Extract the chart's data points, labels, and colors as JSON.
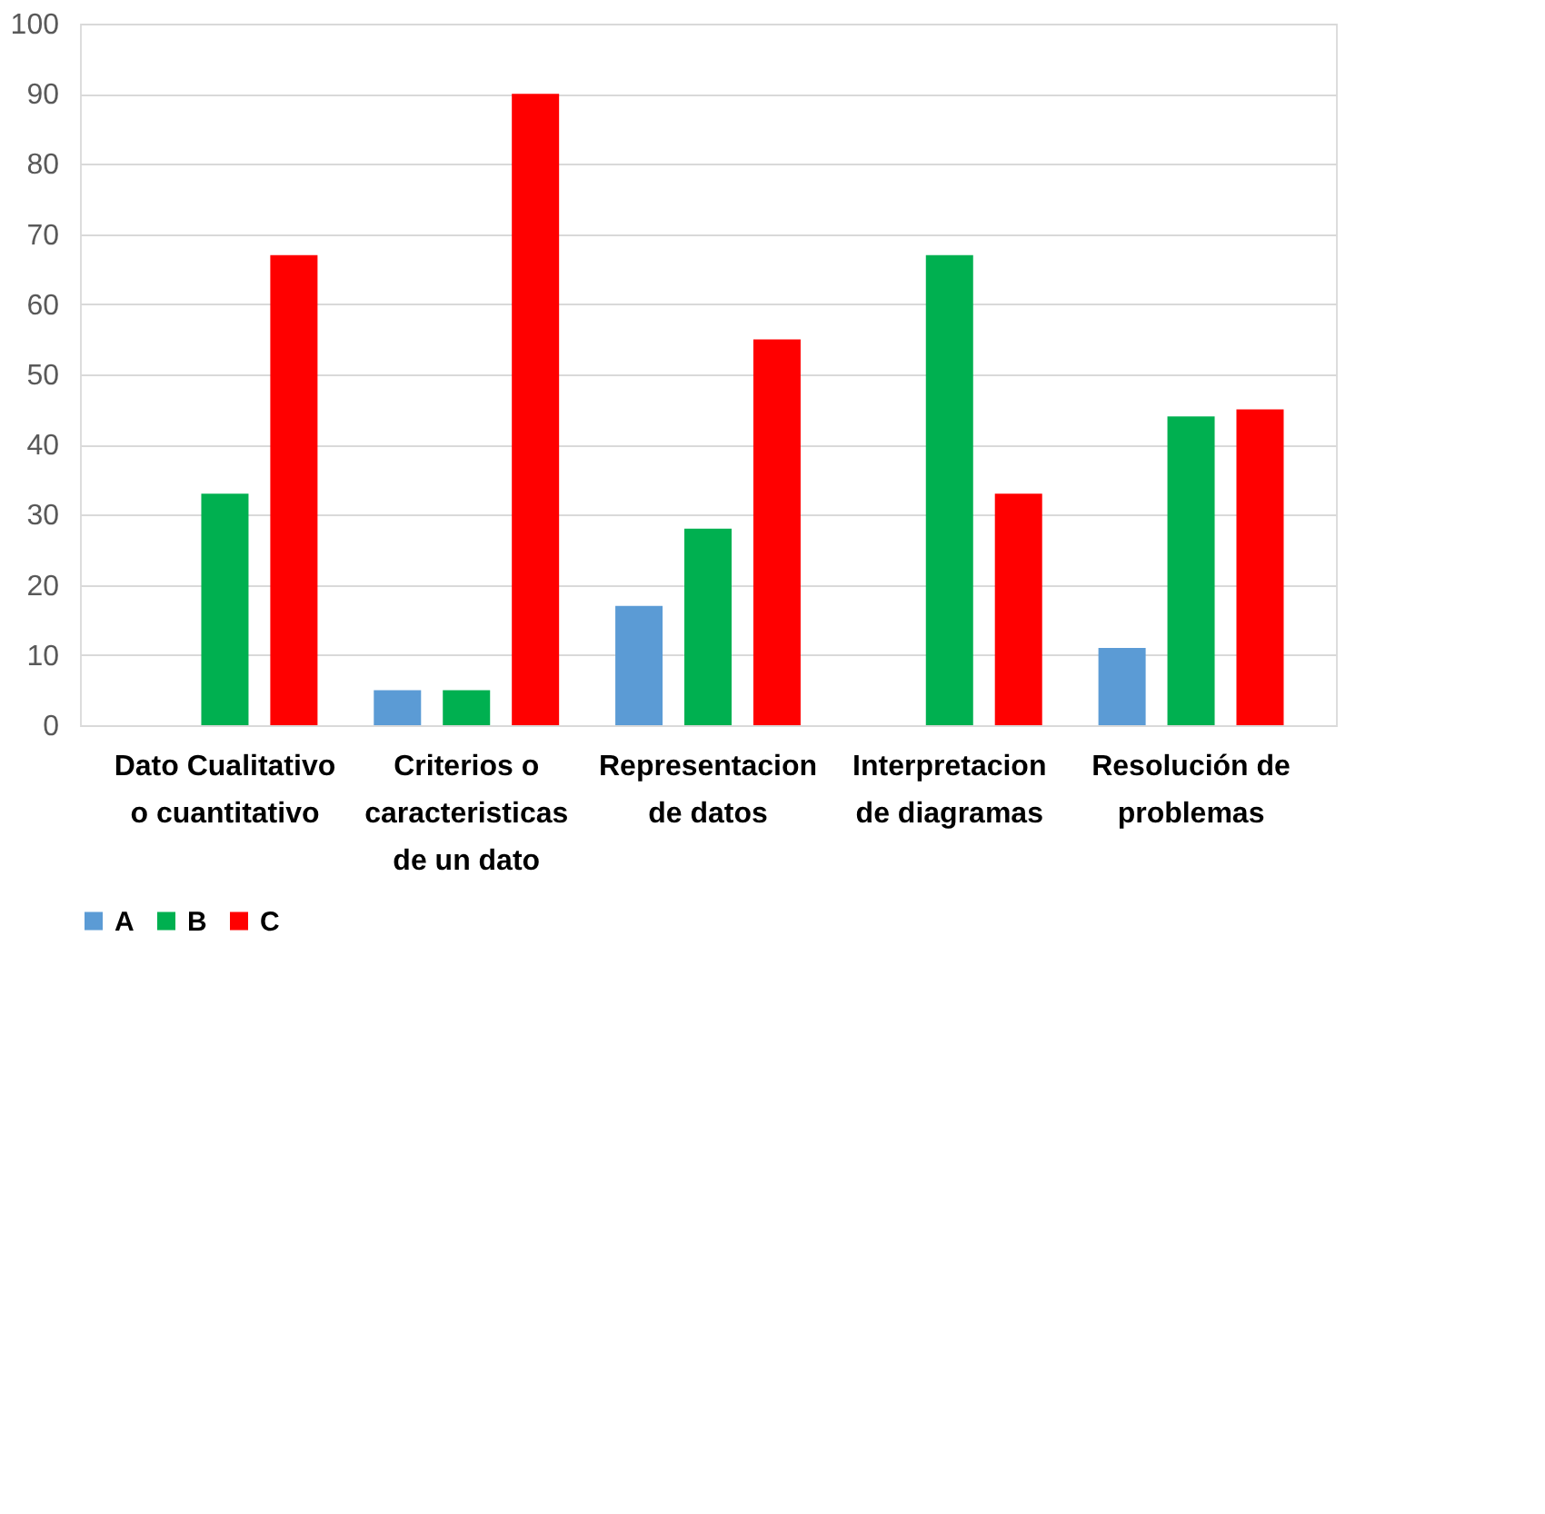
{
  "chart_data": {
    "type": "bar",
    "categories": [
      "Dato Cualitativo o cuantitativo",
      "Criterios o caracteristicas de un dato",
      "Representacion de datos",
      "Interpretacion de diagramas",
      "Resolución de problemas"
    ],
    "series": [
      {
        "name": "A",
        "color": "#5b9bd5",
        "values": [
          null,
          5,
          17,
          null,
          11
        ]
      },
      {
        "name": "B",
        "color": "#00b050",
        "values": [
          33,
          5,
          28,
          67,
          44
        ]
      },
      {
        "name": "C",
        "color": "#ff0000",
        "values": [
          67,
          90,
          55,
          33,
          45
        ]
      }
    ],
    "ylim": [
      0,
      100
    ],
    "yticks": [
      0,
      10,
      20,
      30,
      40,
      50,
      60,
      70,
      80,
      90,
      100
    ],
    "grid": "y",
    "legend": "bottom"
  }
}
